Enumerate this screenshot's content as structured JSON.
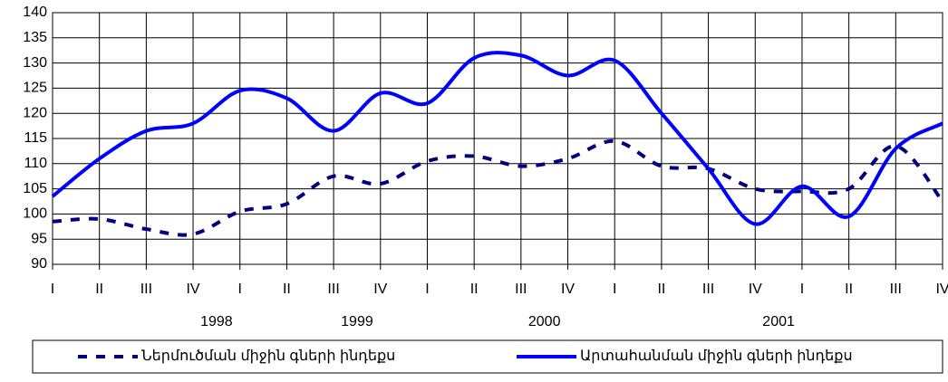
{
  "chart_data": {
    "type": "line",
    "categories": [
      "I",
      "II",
      "III",
      "IV",
      "I",
      "II",
      "III",
      "IV",
      "I",
      "II",
      "III",
      "IV",
      "I",
      "II",
      "III",
      "IV",
      "I",
      "II",
      "III",
      "IV"
    ],
    "year_labels": [
      "1998",
      "1999",
      "2000",
      "2001"
    ],
    "series": [
      {
        "name": "Ներմուծման միջին գների ինդեքս",
        "color": "#000080",
        "dashed": true,
        "values": [
          98.5,
          99,
          97,
          96,
          100.5,
          102,
          107.5,
          106,
          110.5,
          111.5,
          109.5,
          111,
          114.5,
          109.5,
          109,
          105,
          104.5,
          105,
          113.5,
          102.5
        ]
      },
      {
        "name": "Արտահանման միջին գների ինդեքս",
        "color": "#0000ff",
        "dashed": false,
        "values": [
          103.5,
          111,
          116.5,
          118,
          124.5,
          123,
          116.5,
          124,
          122,
          131,
          131.5,
          127.5,
          130.5,
          120,
          109,
          98,
          105.5,
          99.5,
          113,
          118
        ]
      }
    ],
    "ylim": [
      90,
      140
    ],
    "yticks": [
      90,
      95,
      100,
      105,
      110,
      115,
      120,
      125,
      130,
      135,
      140
    ],
    "grid": true
  }
}
